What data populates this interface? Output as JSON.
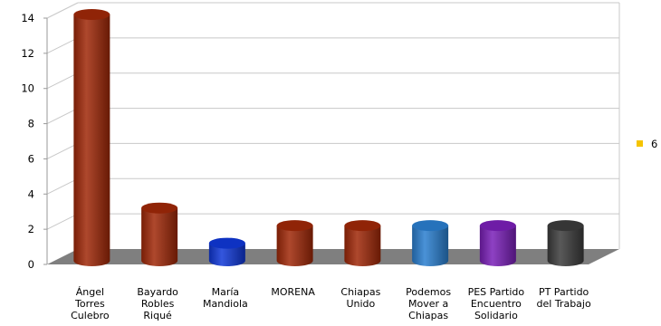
{
  "chart_data": {
    "type": "bar",
    "style": "3d-cylinder",
    "categories": [
      [
        "Ángel",
        "Torres",
        "Culebro"
      ],
      [
        "Bayardo",
        "Robles",
        "Riqué"
      ],
      [
        "María",
        "Mandiola"
      ],
      [
        "MORENA"
      ],
      [
        "Chiapas",
        "Unido"
      ],
      [
        "Podemos",
        "Mover a",
        "Chiapas"
      ],
      [
        "PES Partido",
        "Encuentro",
        "Solidario"
      ],
      [
        "PT Partido",
        "del Trabajo"
      ]
    ],
    "series": [
      {
        "name": "6",
        "values": [
          14,
          3,
          1,
          2,
          2,
          2,
          2,
          2
        ]
      }
    ],
    "bar_colors": [
      "#a02808",
      "#a02808",
      "#1038d8",
      "#a02808",
      "#a02808",
      "#2a7fd0",
      "#7a1fb8",
      "#3c3c3c"
    ],
    "legend_color": "#f5c400",
    "ylim": [
      0,
      14
    ],
    "yticks": [
      "0",
      "2",
      "4",
      "6",
      "8",
      "10",
      "12",
      "14"
    ],
    "grid": true,
    "legend_position": "right",
    "floor_color": "#7f7f7f",
    "grid_color": "#c8c8c8"
  }
}
